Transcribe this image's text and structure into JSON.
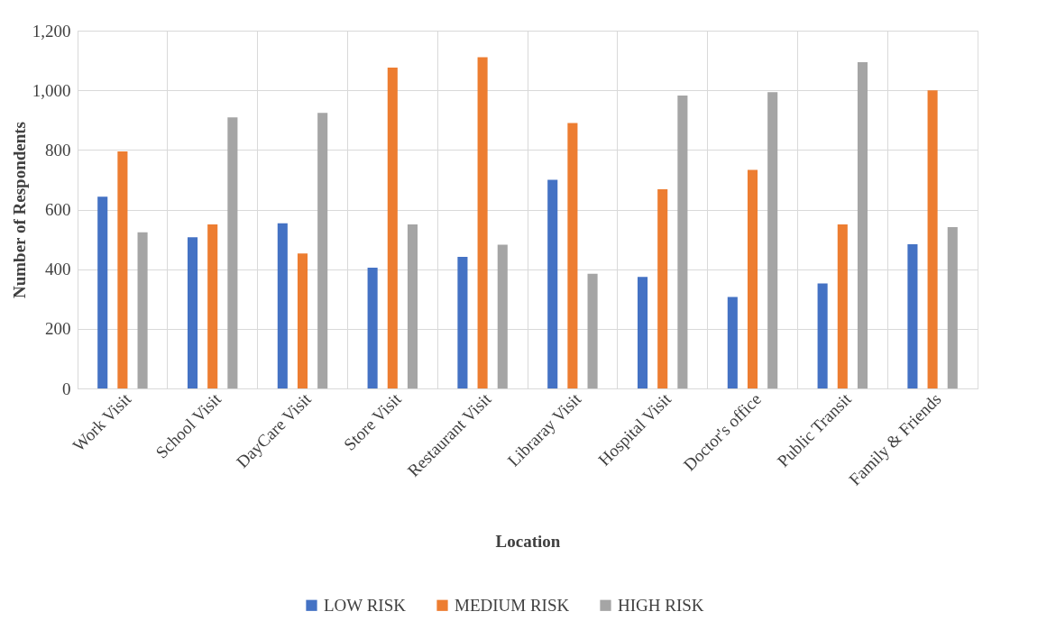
{
  "chart_data": {
    "type": "bar",
    "xlabel": "Location",
    "ylabel": "Number of Respondents",
    "categories": [
      "Work Visit",
      "School Visit",
      "DayCare Visit",
      "Store Visit",
      "Restaurant Visit",
      "Libraray Visit",
      "Hospital Visit",
      "Doctor's office",
      "Public Transit",
      "Family & Friends"
    ],
    "series": [
      {
        "name": "LOW RISK",
        "color": "#4472c4",
        "values": [
          643,
          507,
          554,
          405,
          441,
          700,
          374,
          307,
          352,
          484
        ]
      },
      {
        "name": "MEDIUM RISK",
        "color": "#ed7d31",
        "values": [
          795,
          550,
          453,
          1076,
          1111,
          890,
          668,
          733,
          550,
          1000
        ]
      },
      {
        "name": "HIGH RISK",
        "color": "#a5a5a5",
        "values": [
          524,
          909,
          924,
          550,
          482,
          385,
          982,
          994,
          1094,
          541
        ]
      }
    ],
    "ylim": [
      0,
      1200
    ],
    "yticks": [
      0,
      200,
      400,
      600,
      800,
      {
        "value": 1000,
        "label": "1,000"
      },
      {
        "value": 1200,
        "label": "1,200"
      }
    ],
    "grid": true,
    "legend": "bottom"
  }
}
